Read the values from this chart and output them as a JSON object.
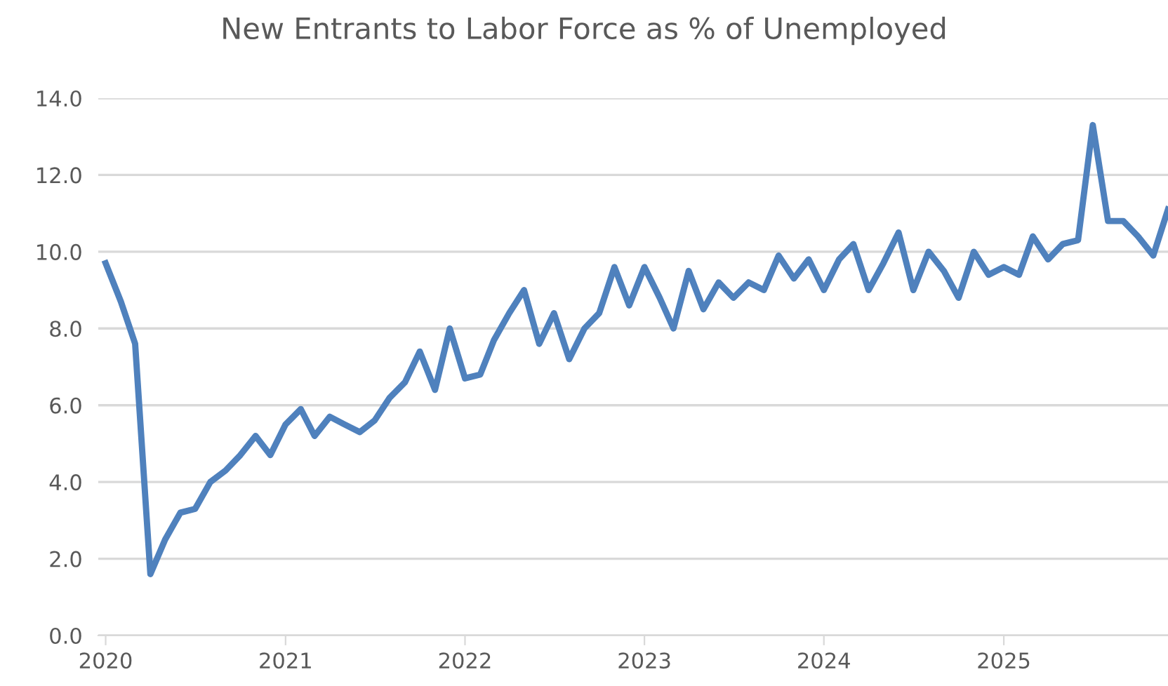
{
  "chart_data": {
    "type": "line",
    "title": "New Entrants to Labor Force as % of Unemployed",
    "x": [
      "2020-01",
      "2020-02",
      "2020-03",
      "2020-04",
      "2020-05",
      "2020-06",
      "2020-07",
      "2020-08",
      "2020-09",
      "2020-10",
      "2020-11",
      "2020-12",
      "2021-01",
      "2021-02",
      "2021-03",
      "2021-04",
      "2021-05",
      "2021-06",
      "2021-07",
      "2021-08",
      "2021-09",
      "2021-10",
      "2021-11",
      "2021-12",
      "2022-01",
      "2022-02",
      "2022-03",
      "2022-04",
      "2022-05",
      "2022-06",
      "2022-07",
      "2022-08",
      "2022-09",
      "2022-10",
      "2022-11",
      "2022-12",
      "2023-01",
      "2023-02",
      "2023-03",
      "2023-04",
      "2023-05",
      "2023-06",
      "2023-07",
      "2023-08",
      "2023-09",
      "2023-10",
      "2023-11",
      "2023-12",
      "2024-01",
      "2024-02",
      "2024-03",
      "2024-04",
      "2024-05",
      "2024-06",
      "2024-07",
      "2024-08",
      "2024-09",
      "2024-10",
      "2024-11",
      "2024-12",
      "2025-01",
      "2025-02",
      "2025-03",
      "2025-04",
      "2025-05",
      "2025-06",
      "2025-07",
      "2025-08",
      "2025-09",
      "2025-10",
      "2025-11",
      "2025-12"
    ],
    "series": [
      {
        "color": "#4f81bd",
        "values": [
          9.7,
          8.7,
          7.6,
          1.6,
          2.5,
          3.2,
          3.3,
          4.0,
          4.3,
          4.7,
          5.2,
          4.7,
          5.5,
          5.9,
          5.2,
          5.7,
          5.5,
          5.3,
          5.6,
          6.2,
          6.6,
          7.4,
          6.4,
          8.0,
          6.7,
          6.8,
          7.7,
          8.4,
          9.0,
          7.6,
          8.4,
          7.2,
          8.0,
          8.4,
          9.6,
          8.6,
          9.6,
          8.8,
          8.0,
          9.5,
          8.5,
          9.2,
          8.8,
          9.2,
          9.0,
          9.9,
          9.3,
          9.8,
          9.0,
          9.8,
          10.2,
          9.0,
          9.7,
          10.5,
          9.0,
          10.0,
          9.5,
          8.8,
          10.0,
          9.4,
          9.6,
          9.4,
          10.4,
          9.8,
          10.2,
          10.3,
          13.3,
          10.8,
          10.8,
          10.4,
          9.9,
          11.1
        ]
      }
    ],
    "xlim": [
      "2019-12-17",
      "2025-12-01"
    ],
    "xticks": [
      {
        "value": "2020",
        "label": "2020"
      },
      {
        "value": "2021",
        "label": "2021"
      },
      {
        "value": "2022",
        "label": "2022"
      },
      {
        "value": "2023",
        "label": "2023"
      },
      {
        "value": "2024",
        "label": "2024"
      },
      {
        "value": "2025",
        "label": "2025"
      }
    ],
    "ylim": [
      0,
      14
    ],
    "yticks": [
      {
        "value": 0,
        "label": "0.0"
      },
      {
        "value": 2,
        "label": "2.0"
      },
      {
        "value": 4,
        "label": "4.0"
      },
      {
        "value": 6,
        "label": "6.0"
      },
      {
        "value": 8,
        "label": "8.0"
      },
      {
        "value": 10,
        "label": "10.0"
      },
      {
        "value": 12,
        "label": "12.0"
      },
      {
        "value": 14,
        "label": "14.0"
      }
    ],
    "grid": "y",
    "legend": false,
    "marker": "none",
    "line_style": "solid"
  }
}
